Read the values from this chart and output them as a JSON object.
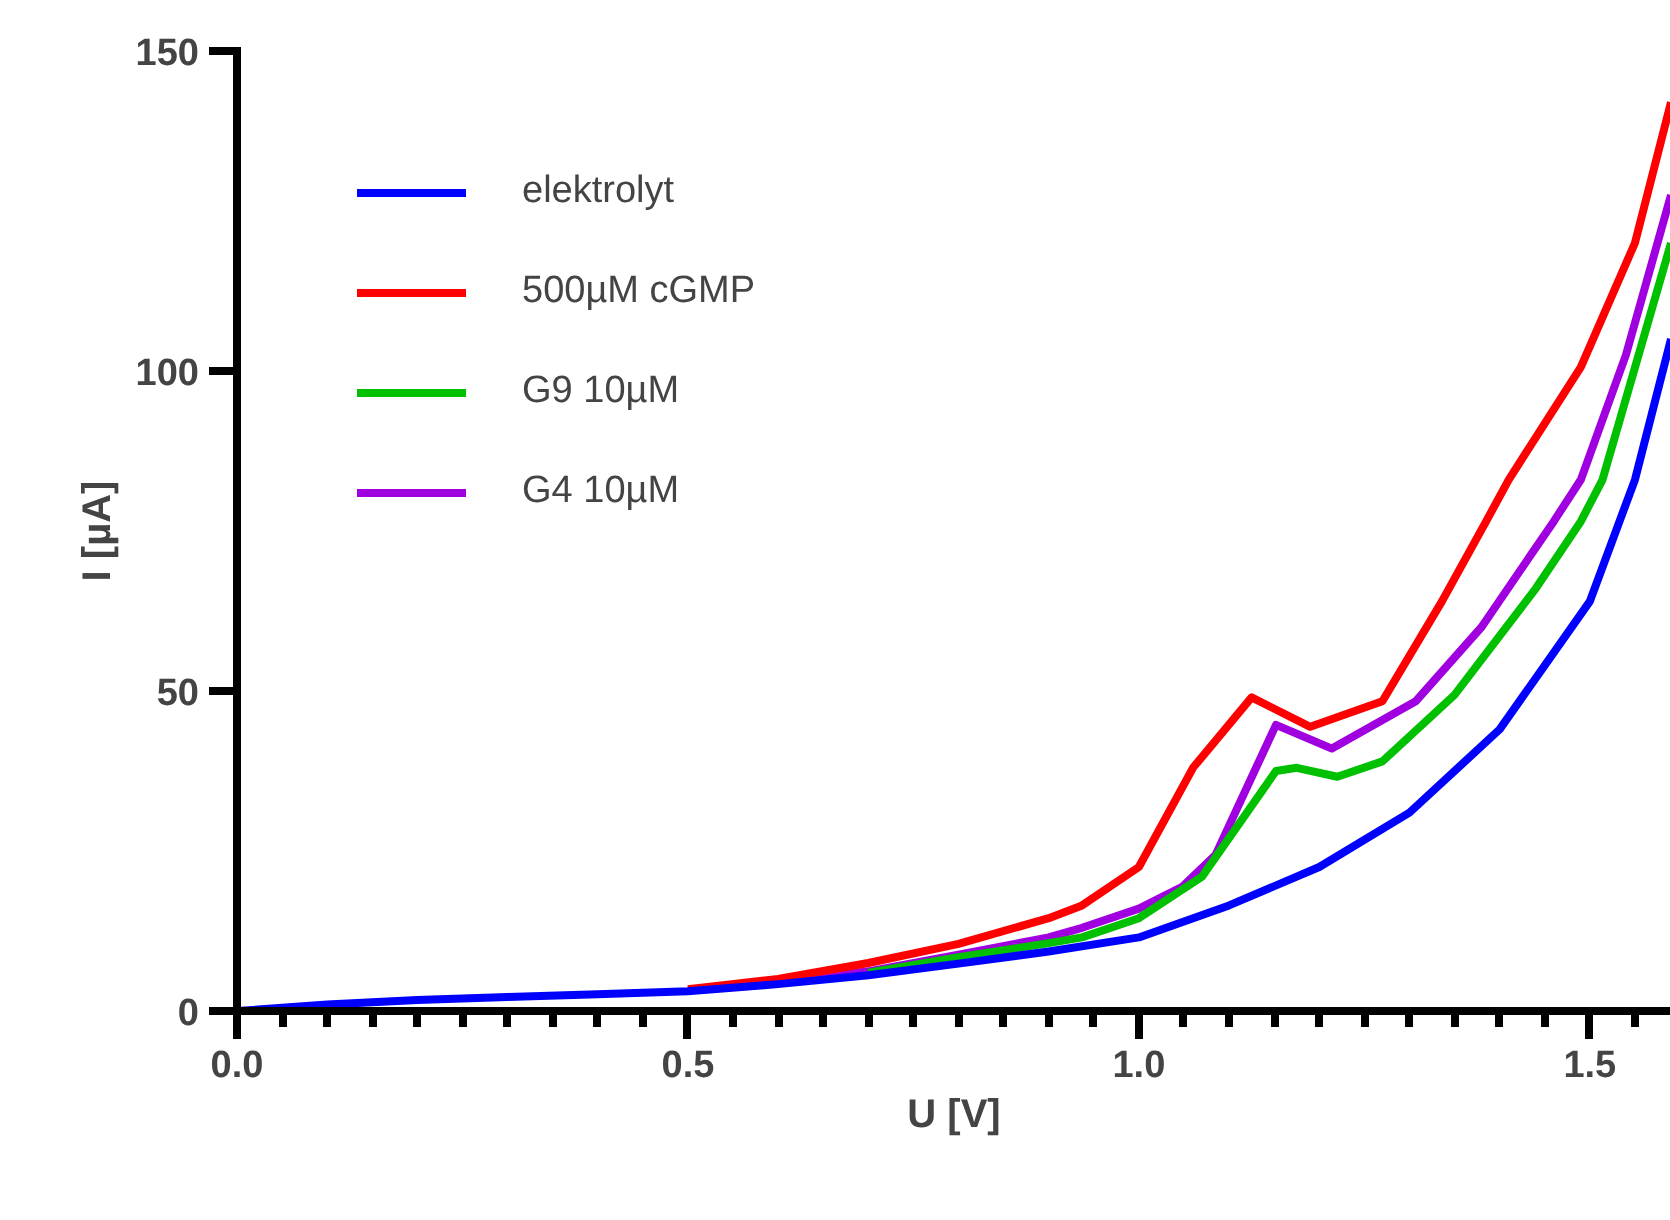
{
  "chart_data": {
    "type": "line",
    "xlabel": "U [V]",
    "ylabel": "I [µA]",
    "xlim": [
      0,
      1.59
    ],
    "ylim": [
      0,
      150
    ],
    "xticks": [
      {
        "value": 0,
        "label": "0.0"
      },
      {
        "value": 0.05,
        "label": null
      },
      {
        "value": 0.1,
        "label": null
      },
      {
        "value": 0.15,
        "label": null
      },
      {
        "value": 0.2,
        "label": null
      },
      {
        "value": 0.25,
        "label": null
      },
      {
        "value": 0.3,
        "label": null
      },
      {
        "value": 0.35,
        "label": null
      },
      {
        "value": 0.4,
        "label": null
      },
      {
        "value": 0.45,
        "label": null
      },
      0.5,
      {
        "value": 0.55,
        "label": null
      },
      {
        "value": 0.6,
        "label": null
      },
      {
        "value": 0.65,
        "label": null
      },
      {
        "value": 0.7,
        "label": null
      },
      {
        "value": 0.75,
        "label": null
      },
      {
        "value": 0.8,
        "label": null
      },
      {
        "value": 0.85,
        "label": null
      },
      {
        "value": 0.9,
        "label": null
      },
      {
        "value": 0.95,
        "label": null
      },
      {
        "value": 1,
        "label": "1.0"
      },
      {
        "value": 1.05,
        "label": null
      },
      {
        "value": 1.1,
        "label": null
      },
      {
        "value": 1.15,
        "label": null
      },
      {
        "value": 1.2,
        "label": null
      },
      {
        "value": 1.25,
        "label": null
      },
      {
        "value": 1.3,
        "label": null
      },
      {
        "value": 1.35,
        "label": null
      },
      {
        "value": 1.4,
        "label": null
      },
      {
        "value": 1.45,
        "label": null
      },
      1.5,
      {
        "value": 1.55,
        "label": null
      }
    ],
    "yticks": [
      0,
      50,
      100,
      150
    ],
    "grid": false,
    "legend": "top left",
    "marker": "none",
    "line_style": "solid",
    "series": [
      {
        "name": "elektrolyt",
        "color": "#0000ff",
        "x": [
          0,
          0.1,
          0.2,
          0.3,
          0.4,
          0.5,
          0.6,
          0.7,
          0.8,
          0.9,
          1.0,
          1.1,
          1.2,
          1.3,
          1.4,
          1.5,
          1.55,
          1.59
        ],
        "values": [
          0,
          1,
          1.7,
          2.2,
          2.6,
          3.1,
          4.2,
          5.6,
          7.4,
          9.3,
          11.5,
          16.5,
          22.5,
          31,
          44,
          64,
          83,
          105
        ]
      },
      {
        "name": "500µM cGMP",
        "color": "#ff0000",
        "x": [
          0.5,
          0.6,
          0.7,
          0.8,
          0.9,
          0.937,
          1.0,
          1.06,
          1.125,
          1.19,
          1.27,
          1.336,
          1.385,
          1.41,
          1.49,
          1.55,
          1.59
        ],
        "values": [
          3.4,
          5,
          7.5,
          10.5,
          14.5,
          16.5,
          22.5,
          38,
          49,
          44.4,
          48.4,
          64,
          76.5,
          83,
          100.6,
          120,
          142
        ]
      },
      {
        "name": "G9 10µM",
        "color": "#00c000",
        "x": [
          0.7,
          0.8,
          0.9,
          0.937,
          1.0,
          1.07,
          1.152,
          1.175,
          1.22,
          1.27,
          1.35,
          1.44,
          1.49,
          1.514,
          1.59
        ],
        "values": [
          6,
          8.4,
          10.6,
          11.5,
          14.5,
          21,
          37.5,
          38,
          36.6,
          39,
          49.4,
          66,
          76.5,
          83,
          120
        ]
      },
      {
        "name": "G4 10µM",
        "color": "#a000e0",
        "x": [
          0.5,
          0.6,
          0.7,
          0.8,
          0.9,
          0.937,
          1.0,
          1.048,
          1.085,
          1.152,
          1.214,
          1.307,
          1.38,
          1.46,
          1.49,
          1.54,
          1.59
        ],
        "values": [
          3.2,
          4.5,
          6.2,
          8.8,
          11.5,
          13,
          16,
          19.4,
          24.4,
          44.7,
          41,
          48.4,
          60,
          76.5,
          83,
          102.5,
          127.5
        ]
      }
    ]
  }
}
